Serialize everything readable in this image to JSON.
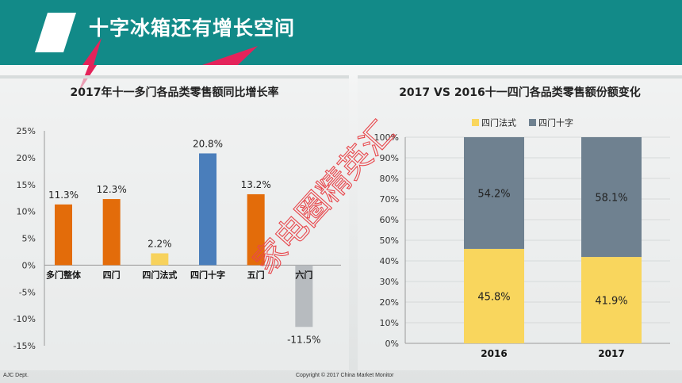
{
  "header": {
    "title": "十字冰箱还有增长空间"
  },
  "footer": {
    "left": "AJC Dept.",
    "right": "Copyright © 2017 China Market Monitor"
  },
  "watermark": {
    "text": "家电圈精英汇"
  },
  "colors": {
    "orange": "#e36c0a",
    "yellow": "#f7d25c",
    "blue": "#4a7ebb",
    "gray": "#b7bbbf",
    "stack_yellow": "#f9d65d",
    "stack_gray": "#6f8190",
    "teal": "#128a88"
  },
  "chart_data": [
    {
      "type": "bar",
      "title": "2017年十一多门各品类零售额同比增长率",
      "categories": [
        "多门整体",
        "四门",
        "四门法式",
        "四门十字",
        "五门",
        "六门"
      ],
      "values": [
        11.3,
        12.3,
        2.2,
        20.8,
        13.2,
        -11.5
      ],
      "value_labels": [
        "11.3%",
        "12.3%",
        "2.2%",
        "20.8%",
        "13.2%",
        "-11.5%"
      ],
      "bar_colors": [
        "#e36c0a",
        "#e36c0a",
        "#f7d25c",
        "#4a7ebb",
        "#e36c0a",
        "#b7bbbf"
      ],
      "ylim": [
        -15,
        25
      ],
      "yticks": [
        25,
        20,
        15,
        10,
        5,
        0,
        -5,
        -10,
        -15
      ],
      "ytick_labels": [
        "25%",
        "20%",
        "15%",
        "10%",
        "5%",
        "0%",
        "-5%",
        "-10%",
        "-15%"
      ],
      "grid": false
    },
    {
      "type": "bar",
      "stacked": true,
      "title": "2017 VS 2016十一四门各品类零售额份额变化",
      "categories": [
        "2016",
        "2017"
      ],
      "series": [
        {
          "name": "四门法式",
          "values": [
            45.8,
            41.9
          ],
          "labels": [
            "45.8%",
            "41.9%"
          ],
          "color": "#f9d65d"
        },
        {
          "name": "四门十字",
          "values": [
            54.2,
            58.1
          ],
          "labels": [
            "54.2%",
            "58.1%"
          ],
          "color": "#6f8190"
        }
      ],
      "ylim": [
        0,
        100
      ],
      "yticks": [
        0,
        10,
        20,
        30,
        40,
        50,
        60,
        70,
        80,
        90,
        100
      ],
      "ytick_labels": [
        "0%",
        "10%",
        "20%",
        "30%",
        "40%",
        "50%",
        "60%",
        "70%",
        "80%",
        "90%",
        "100%"
      ],
      "legend": "top-left",
      "grid": true
    }
  ]
}
